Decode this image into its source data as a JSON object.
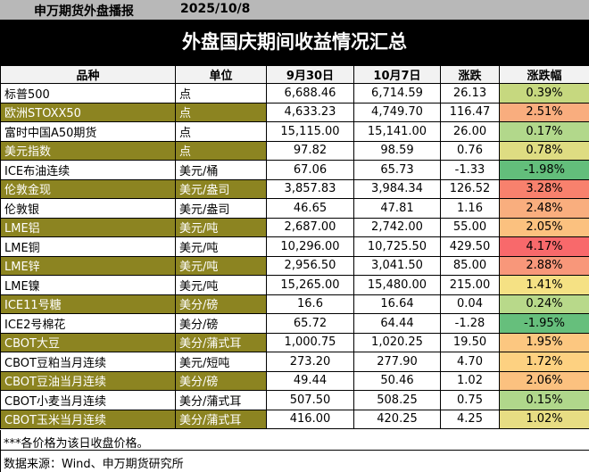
{
  "header": {
    "brand": "申万期货外盘播报",
    "date": "2025/10/8"
  },
  "title": "外盘国庆期间收益情况汇总",
  "columns": [
    "品种",
    "单位",
    "9月30日",
    "10月7日",
    "涨跌",
    "涨跌幅"
  ],
  "rows": [
    {
      "name": "标普500",
      "unit": "点",
      "d1": "6,688.46",
      "d2": "6,714.59",
      "chg": "26.13",
      "pct": "0.39%",
      "color": "#c6d87f",
      "olive": false
    },
    {
      "name": "欧洲STOXX50",
      "unit": "点",
      "d1": "4,633.23",
      "d2": "4,749.70",
      "chg": "116.47",
      "pct": "2.51%",
      "color": "#f9ad7e",
      "olive": true
    },
    {
      "name": "富时中国A50期货",
      "unit": "点",
      "d1": "15,115.00",
      "d2": "15,141.00",
      "chg": "26.00",
      "pct": "0.17%",
      "color": "#b2d88b",
      "olive": false
    },
    {
      "name": "美元指数",
      "unit": "点",
      "d1": "97.82",
      "d2": "98.59",
      "chg": "0.76",
      "pct": "0.78%",
      "color": "#dedc82",
      "olive": true
    },
    {
      "name": "ICE布油连续",
      "unit": "美元/桶",
      "d1": "67.06",
      "d2": "65.73",
      "chg": "-1.33",
      "pct": "-1.98%",
      "color": "#63be7b",
      "olive": false
    },
    {
      "name": "伦敦金现",
      "unit": "美元/盎司",
      "d1": "3,857.83",
      "d2": "3,984.34",
      "chg": "126.52",
      "pct": "3.28%",
      "color": "#f8816d",
      "olive": true
    },
    {
      "name": "伦敦银",
      "unit": "美元/盎司",
      "d1": "46.65",
      "d2": "47.81",
      "chg": "1.16",
      "pct": "2.48%",
      "color": "#f9ae7e",
      "olive": false
    },
    {
      "name": "LME铝",
      "unit": "美元/吨",
      "d1": "2,687.00",
      "d2": "2,742.00",
      "chg": "55.00",
      "pct": "2.05%",
      "color": "#fbc17f",
      "olive": true
    },
    {
      "name": "LME铜",
      "unit": "美元/吨",
      "d1": "10,296.00",
      "d2": "10,725.50",
      "chg": "429.50",
      "pct": "4.17%",
      "color": "#f8696b",
      "olive": false
    },
    {
      "name": "LME锌",
      "unit": "美元/吨",
      "d1": "2,956.50",
      "d2": "3,041.50",
      "chg": "85.00",
      "pct": "2.88%",
      "color": "#f8977a",
      "olive": true
    },
    {
      "name": "LME镍",
      "unit": "美元/吨",
      "d1": "15,265.00",
      "d2": "15,480.00",
      "chg": "215.00",
      "pct": "1.41%",
      "color": "#f5e184",
      "olive": false
    },
    {
      "name": "ICE11号糖",
      "unit": "美分/磅",
      "d1": "16.6",
      "d2": "16.64",
      "chg": "0.04",
      "pct": "0.24%",
      "color": "#b8d98a",
      "olive": true
    },
    {
      "name": "ICE2号棉花",
      "unit": "美分/磅",
      "d1": "65.72",
      "d2": "64.44",
      "chg": "-1.28",
      "pct": "-1.95%",
      "color": "#66bf7c",
      "olive": false
    },
    {
      "name": "CBOT大豆",
      "unit": "美分/蒲式耳",
      "d1": "1,000.75",
      "d2": "1,020.25",
      "chg": "19.50",
      "pct": "1.95%",
      "color": "#fcc780",
      "olive": true
    },
    {
      "name": "CBOT豆粕当月连续",
      "unit": "美元/短吨",
      "d1": "273.20",
      "d2": "277.90",
      "chg": "4.70",
      "pct": "1.72%",
      "color": "#fdd181",
      "olive": false
    },
    {
      "name": "CBOT豆油当月连续",
      "unit": "美分/磅",
      "d1": "49.44",
      "d2": "50.46",
      "chg": "1.02",
      "pct": "2.06%",
      "color": "#fbc17f",
      "olive": true
    },
    {
      "name": "CBOT小麦当月连续",
      "unit": "美分/蒲式耳",
      "d1": "507.50",
      "d2": "508.25",
      "chg": "0.75",
      "pct": "0.15%",
      "color": "#b0d78b",
      "olive": false
    },
    {
      "name": "CBOT玉米当月连续",
      "unit": "美分/蒲式耳",
      "d1": "416.00",
      "d2": "420.25",
      "chg": "4.25",
      "pct": "1.02%",
      "color": "#e7dd83",
      "olive": true
    }
  ],
  "note": "***各价格为该日收盘价格。",
  "source": "数据来源：Wind、申万期货研究所"
}
